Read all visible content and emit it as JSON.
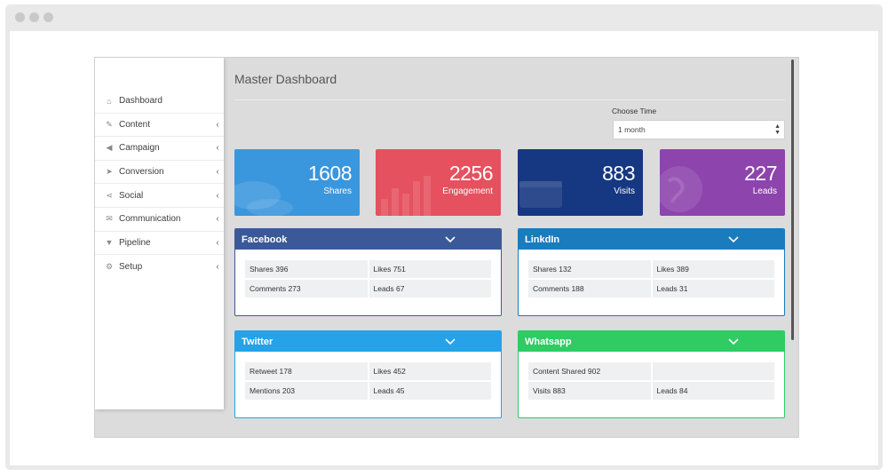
{
  "browser": {
    "traffic_lights": [
      "dot",
      "dot",
      "dot"
    ]
  },
  "sidebar": {
    "items": [
      {
        "label": "Dashboard",
        "icon": "home-icon",
        "glyph": "⌂",
        "chevron": ""
      },
      {
        "label": "Content",
        "icon": "edit-icon",
        "glyph": "✎",
        "chevron": "‹"
      },
      {
        "label": "Campaign",
        "icon": "megaphone-icon",
        "glyph": "◀",
        "chevron": "‹"
      },
      {
        "label": "Conversion",
        "icon": "cursor-icon",
        "glyph": "➤",
        "chevron": "‹"
      },
      {
        "label": "Social",
        "icon": "share-icon",
        "glyph": "⋖",
        "chevron": "‹"
      },
      {
        "label": "Communication",
        "icon": "envelope-icon",
        "glyph": "✉",
        "chevron": "‹"
      },
      {
        "label": "Pipeline",
        "icon": "filter-icon",
        "glyph": "▼",
        "chevron": "‹"
      },
      {
        "label": "Setup",
        "icon": "gear-icon",
        "glyph": "⚙",
        "chevron": "‹"
      }
    ]
  },
  "main": {
    "title": "Master Dashboard",
    "time_filter": {
      "label": "Choose Time",
      "selected": "1 month"
    },
    "stats": [
      {
        "value": "1608",
        "label": "Shares",
        "color": "#3a96dd"
      },
      {
        "value": "2256",
        "label": "Engagement",
        "color": "#e5515e"
      },
      {
        "value": "883",
        "label": "Visits",
        "color": "#163781"
      },
      {
        "value": "227",
        "label": "Leads",
        "color": "#8e44ad"
      }
    ],
    "panels": [
      {
        "title": "Facebook",
        "color": "#3b5998",
        "border": "#3b5998",
        "cells": [
          "Shares 396",
          "Likes 751",
          "Comments 273",
          "Leads 67"
        ]
      },
      {
        "title": "LinkdIn",
        "color": "#1a7bbd",
        "border": "#1a7bbd",
        "cells": [
          "Shares 132",
          "Likes 389",
          "Comments 188",
          "Leads 31"
        ]
      },
      {
        "title": "Twitter",
        "color": "#25a2e8",
        "border": "#25a2e8",
        "cells": [
          "Retweet 178",
          "Likes 452",
          "Mentions 203",
          "Leads 45"
        ]
      },
      {
        "title": "Whatsapp",
        "color": "#2ecc63",
        "border": "#2ecc63",
        "cells": [
          "Content Shared 902",
          "",
          "Visits 883",
          "Leads 84"
        ]
      }
    ]
  }
}
